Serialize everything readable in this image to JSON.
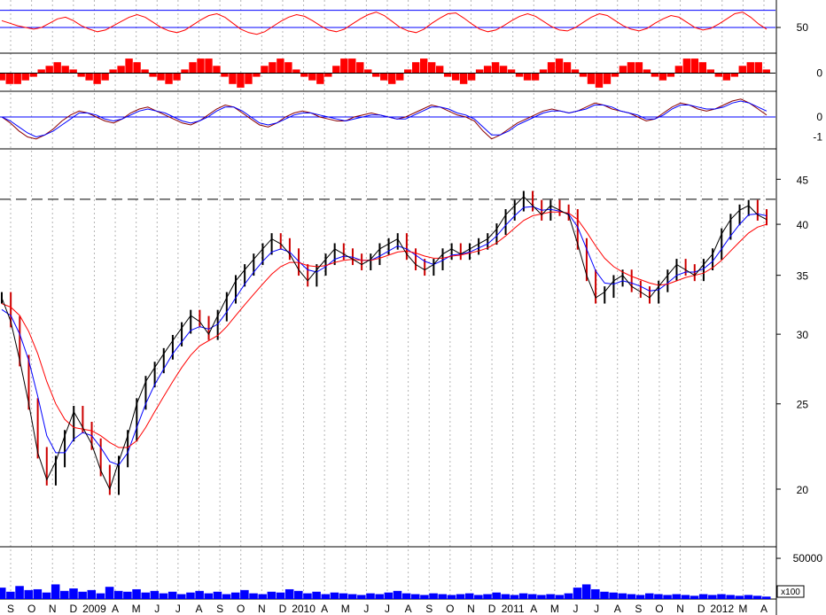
{
  "chart_data": [
    {
      "panel": "rsi",
      "type": "line",
      "y_ticks": [
        "50"
      ],
      "ylim": [
        20,
        80
      ],
      "levels": [
        70,
        50
      ],
      "color": "#ff0000",
      "level_color": "#0000ff",
      "values": [
        58,
        55,
        52,
        50,
        48,
        50,
        55,
        60,
        62,
        58,
        52,
        48,
        45,
        47,
        52,
        57,
        62,
        65,
        62,
        56,
        50,
        46,
        44,
        47,
        53,
        59,
        64,
        66,
        62,
        55,
        48,
        44,
        42,
        45,
        51,
        57,
        62,
        65,
        63,
        58,
        52,
        47,
        45,
        48,
        54,
        60,
        65,
        68,
        64,
        57,
        50,
        46,
        44,
        48,
        55,
        61,
        66,
        67,
        61,
        54,
        48,
        45,
        47,
        52,
        58,
        63,
        66,
        63,
        57,
        51,
        47,
        46,
        50,
        56,
        62,
        66,
        64,
        58,
        52,
        48,
        46,
        49,
        55,
        60,
        64,
        62,
        56,
        50,
        47,
        49,
        54,
        60,
        66,
        68,
        62,
        54,
        48
      ]
    },
    {
      "panel": "momentum",
      "type": "bar",
      "y_ticks": [
        "0"
      ],
      "ylim": [
        -5,
        5
      ],
      "color": "#ff0000",
      "values": [
        -2,
        -3,
        -3,
        -2,
        -1,
        1,
        2,
        3,
        2,
        1,
        -1,
        -2,
        -3,
        -2,
        1,
        2,
        4,
        3,
        1,
        -1,
        -2,
        -3,
        -2,
        1,
        3,
        4,
        4,
        2,
        -1,
        -3,
        -4,
        -3,
        -1,
        2,
        3,
        4,
        3,
        1,
        -1,
        -2,
        -3,
        -1,
        2,
        4,
        4,
        3,
        1,
        -1,
        -2,
        -3,
        -2,
        1,
        3,
        4,
        3,
        2,
        -1,
        -2,
        -3,
        -2,
        1,
        2,
        3,
        2,
        1,
        -1,
        -2,
        -2,
        1,
        3,
        4,
        3,
        1,
        -1,
        -3,
        -4,
        -3,
        -1,
        2,
        3,
        3,
        1,
        -1,
        -2,
        -1,
        2,
        4,
        4,
        3,
        1,
        -1,
        -2,
        -1,
        2,
        3,
        3,
        1
      ]
    },
    {
      "panel": "oscillator",
      "type": "line",
      "y_ticks": [
        "0",
        "-1"
      ],
      "ylim": [
        -1.6,
        1.2
      ],
      "zero_color": "#0000ff",
      "series": [
        {
          "color": "#8b0000",
          "values": [
            0,
            -0.3,
            -0.7,
            -1.0,
            -1.1,
            -0.9,
            -0.6,
            -0.2,
            0.1,
            0.3,
            0.2,
            0,
            -0.2,
            -0.3,
            -0.1,
            0.2,
            0.4,
            0.5,
            0.3,
            0.1,
            -0.1,
            -0.3,
            -0.4,
            -0.2,
            0.1,
            0.4,
            0.6,
            0.5,
            0.2,
            -0.1,
            -0.4,
            -0.5,
            -0.3,
            0,
            0.2,
            0.3,
            0.2,
            0,
            -0.1,
            -0.2,
            -0.2,
            0,
            0.1,
            0.2,
            0.1,
            0,
            -0.1,
            0,
            0.2,
            0.4,
            0.6,
            0.5,
            0.3,
            0.1,
            0,
            -0.2,
            -0.7,
            -1.1,
            -0.9,
            -0.6,
            -0.3,
            -0.1,
            0.1,
            0.3,
            0.4,
            0.3,
            0.2,
            0.3,
            0.5,
            0.7,
            0.6,
            0.4,
            0.3,
            0.2,
            0,
            -0.2,
            -0.1,
            0.2,
            0.5,
            0.7,
            0.6,
            0.4,
            0.3,
            0.4,
            0.6,
            0.8,
            0.9,
            0.7,
            0.4,
            0.1
          ]
        },
        {
          "color": "#0000ff",
          "values": [
            0,
            -0.2,
            -0.5,
            -0.8,
            -1.0,
            -0.9,
            -0.7,
            -0.4,
            -0.1,
            0.2,
            0.2,
            0.1,
            -0.1,
            -0.2,
            -0.1,
            0.1,
            0.3,
            0.4,
            0.3,
            0.2,
            0,
            -0.2,
            -0.3,
            -0.2,
            0,
            0.3,
            0.5,
            0.5,
            0.3,
            0,
            -0.3,
            -0.4,
            -0.3,
            -0.1,
            0.1,
            0.2,
            0.2,
            0.1,
            0,
            -0.1,
            -0.2,
            -0.1,
            0,
            0.1,
            0.1,
            0,
            -0.1,
            -0.1,
            0.1,
            0.3,
            0.5,
            0.5,
            0.4,
            0.2,
            0.1,
            -0.1,
            -0.5,
            -0.9,
            -0.9,
            -0.7,
            -0.4,
            -0.2,
            0,
            0.2,
            0.3,
            0.3,
            0.2,
            0.3,
            0.4,
            0.6,
            0.6,
            0.5,
            0.3,
            0.2,
            0.1,
            -0.1,
            -0.1,
            0.1,
            0.4,
            0.6,
            0.6,
            0.5,
            0.4,
            0.4,
            0.5,
            0.7,
            0.8,
            0.7,
            0.5,
            0.3
          ]
        }
      ]
    },
    {
      "panel": "price",
      "type": "line",
      "scale": "log",
      "y_ticks": [
        "45",
        "40",
        "35",
        "30",
        "25",
        "20"
      ],
      "ylim": [
        17.2,
        48.5
      ],
      "resistance_level": 42.7,
      "x_labels": [
        "S",
        "O",
        "N",
        "D",
        "2009",
        "A",
        "M",
        "J",
        "J",
        "A",
        "S",
        "O",
        "N",
        "D",
        "2010",
        "A",
        "M",
        "J",
        "J",
        "A",
        "S",
        "O",
        "N",
        "D",
        "2011",
        "A",
        "M",
        "J",
        "J",
        "A",
        "S",
        "O",
        "N",
        "D",
        "2012",
        "M",
        "A"
      ],
      "series": [
        {
          "color": "#000000",
          "values": [
            33,
            31,
            28,
            25,
            22,
            20.5,
            21.5,
            23,
            24.5,
            23.5,
            22.5,
            21,
            20,
            21.5,
            23,
            25,
            26.5,
            27.5,
            28.5,
            29.5,
            30.5,
            31.5,
            31,
            30,
            31.5,
            33,
            34.5,
            35.5,
            36.5,
            37.5,
            38.5,
            38,
            37,
            35.5,
            34.5,
            35.5,
            36.5,
            37.5,
            37,
            36.5,
            36,
            36.5,
            37.5,
            38,
            38.5,
            37,
            36,
            35.5,
            36,
            37,
            37.5,
            37,
            37.5,
            38,
            38.5,
            39.5,
            41,
            42,
            43,
            42,
            41,
            42,
            41.5,
            41,
            38,
            35,
            33,
            33.5,
            34.5,
            35,
            34,
            33.5,
            33,
            34,
            35,
            36,
            35.5,
            35,
            36,
            37,
            39,
            40.5,
            41.5,
            42,
            41,
            40.5
          ]
        },
        {
          "color": "#0000ff",
          "values": [
            32,
            31.5,
            30,
            28,
            25.5,
            23,
            22,
            22,
            22.8,
            23.2,
            23,
            22.3,
            21.5,
            21.3,
            22,
            23.5,
            25,
            26.3,
            27.4,
            28.5,
            29.4,
            30.3,
            30.6,
            30.4,
            30.8,
            31.8,
            33,
            34.2,
            35.3,
            36.3,
            37.2,
            37.5,
            37.2,
            36.3,
            35.5,
            35.3,
            35.8,
            36.5,
            36.8,
            36.7,
            36.4,
            36.4,
            36.8,
            37.3,
            37.8,
            37.5,
            36.9,
            36.3,
            36,
            36.4,
            36.9,
            37,
            37.2,
            37.6,
            38,
            38.8,
            39.9,
            40.9,
            41.8,
            41.9,
            41.5,
            41.6,
            41.4,
            41.1,
            39.7,
            37.5,
            35.4,
            34.3,
            34.2,
            34.5,
            34.3,
            34,
            33.6,
            33.7,
            34.3,
            35,
            35.3,
            35.3,
            35.6,
            36.3,
            37.5,
            38.8,
            40,
            41,
            41.1,
            40.9
          ]
        },
        {
          "color": "#ff0000",
          "values": [
            32.5,
            32.2,
            31.5,
            30.2,
            28.5,
            26.5,
            25,
            24,
            23.5,
            23.4,
            23.3,
            23,
            22.6,
            22.3,
            22.3,
            22.7,
            23.5,
            24.5,
            25.5,
            26.5,
            27.5,
            28.4,
            29.1,
            29.5,
            29.9,
            30.6,
            31.5,
            32.4,
            33.3,
            34.2,
            35.1,
            35.8,
            36.2,
            36.2,
            35.9,
            35.8,
            35.9,
            36.2,
            36.4,
            36.5,
            36.4,
            36.4,
            36.6,
            36.9,
            37.2,
            37.3,
            37.1,
            36.8,
            36.6,
            36.6,
            36.8,
            36.9,
            37.1,
            37.3,
            37.6,
            38.1,
            38.8,
            39.6,
            40.4,
            40.9,
            41.1,
            41.3,
            41.3,
            41.2,
            40.5,
            39.2,
            37.8,
            36.6,
            35.8,
            35.3,
            34.9,
            34.6,
            34.3,
            34.1,
            34.2,
            34.5,
            34.8,
            35,
            35.2,
            35.7,
            36.4,
            37.3,
            38.2,
            39.1,
            39.7,
            40
          ]
        }
      ]
    },
    {
      "panel": "volume",
      "type": "bar",
      "y_ticks": [
        "50000"
      ],
      "multiplier_label": "x100",
      "ylim": [
        0,
        62000
      ],
      "color": "#0000ff",
      "values": [
        14000,
        9000,
        16000,
        11000,
        12000,
        8000,
        18000,
        10000,
        13000,
        9000,
        11000,
        7000,
        15000,
        10000,
        9000,
        12000,
        8000,
        10000,
        7000,
        9000,
        6000,
        8000,
        10000,
        7000,
        9000,
        6000,
        8000,
        11000,
        7000,
        6000,
        9000,
        8000,
        12000,
        10000,
        7000,
        9000,
        6000,
        8000,
        7000,
        6000,
        5000,
        7000,
        6000,
        8000,
        10000,
        7000,
        6000,
        5000,
        7000,
        6000,
        5000,
        6000,
        7000,
        5000,
        6000,
        8000,
        6000,
        5000,
        7000,
        6000,
        5000,
        6000,
        5000,
        7000,
        14000,
        18000,
        12000,
        9000,
        8000,
        7000,
        6000,
        5000,
        7000,
        6000,
        5000,
        6000,
        5000,
        4000,
        6000,
        5000,
        6000,
        5000,
        4000,
        5000,
        4000,
        3000
      ]
    }
  ]
}
